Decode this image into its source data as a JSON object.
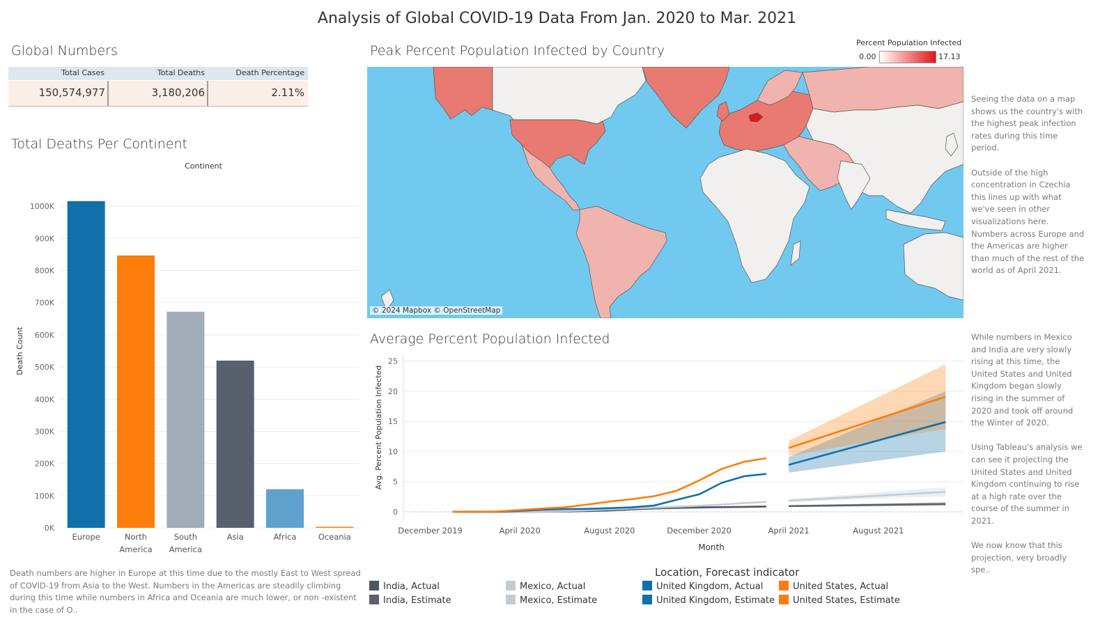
{
  "title": "Analysis of Global COVID-19 Data From Jan. 2020 to Mar. 2021",
  "global_numbers": {
    "title": "Global Numbers",
    "headers": [
      "Total Cases",
      "Total Deaths",
      "Death Percentage"
    ],
    "values": [
      "150,574,977",
      "3,180,206",
      "2.11%"
    ]
  },
  "deaths_per_continent": {
    "title": "Total Deaths Per Continent",
    "column_header": "Continent",
    "note": "Death numbers are higher in Europe at this time due to the mostly East to West spread of COVID-19 from Asia to the West. Numbers in the Americas are steadily climbing during this time while numbers in Africa and Oceania are much lower, or non -existent in the case of O.."
  },
  "map": {
    "title": "Peak Percent Population Infected by Country",
    "legend_title": "Percent Population Infected",
    "legend_min": "0.00",
    "legend_max": "17.13",
    "credit": "© 2024 Mapbox © OpenStreetMap",
    "colors": {
      "water": "#71c9ef",
      "land_low": "#f2f0ee",
      "land_mid": "#f1b3ad",
      "land_high": "#e87a72",
      "land_peak": "#e01717"
    },
    "note": "Seeing the data on a map shows us the country's with the highest peak infection rates during this time period.\n\nOutside of the high concentration in Czechia this lines up with what we've seen in other visualizations here. Numbers across Europe and the Americas are higher than much of the rest of the world as of April 2021."
  },
  "line_section": {
    "title": "Average Percent Population Infected",
    "note": "While numbers in Mexico and India are very slowly rising at this time, the United States and United Kingdom began slowly rising in the summer of 2020 and took off around the Winter of 2020.\n\nUsing Tableau's analysis we can see it projecting the United States and United Kingdom continuing to rise at a high rate over the course of the summer in 2021.\n\nWe now know that this projection, very broadly spe..",
    "legend_title": "Location, Forecast indicator",
    "legend": [
      {
        "label": "India, Actual",
        "color": "#4d5562"
      },
      {
        "label": "India, Estimate",
        "color": "#5b606b"
      },
      {
        "label": "Mexico, Actual",
        "color": "#c5cbd4"
      },
      {
        "label": "Mexico, Estimate",
        "color": "#c5cbd4"
      },
      {
        "label": "United Kingdom, Actual",
        "color": "#1170aa"
      },
      {
        "label": "United Kingdom, Estimate",
        "color": "#1170aa"
      },
      {
        "label": "United States, Actual",
        "color": "#fc7d0b"
      },
      {
        "label": "United States, Estimate",
        "color": "#fc7d0b"
      }
    ]
  },
  "chart_data": [
    {
      "type": "bar",
      "title": "Total Deaths Per Continent",
      "categories": [
        "Europe",
        "North America",
        "South America",
        "Asia",
        "Africa",
        "Oceania"
      ],
      "category_labels": [
        [
          "Europe"
        ],
        [
          "North",
          "America"
        ],
        [
          "South",
          "America"
        ],
        [
          "Asia"
        ],
        [
          "Africa"
        ],
        [
          "Oceania"
        ]
      ],
      "values": [
        1016000,
        847000,
        672000,
        520000,
        120000,
        1000
      ],
      "colors": [
        "#1170aa",
        "#fc7d0b",
        "#a3acb9",
        "#57606c",
        "#5fa2ce",
        "#fc7d0b"
      ],
      "xlabel": "Continent",
      "ylabel": "Death Count",
      "ylim": [
        0,
        1100000
      ],
      "yticks": [
        0,
        100000,
        200000,
        300000,
        400000,
        500000,
        600000,
        700000,
        800000,
        900000,
        1000000
      ],
      "ytick_labels": [
        "0K",
        "100K",
        "200K",
        "300K",
        "400K",
        "500K",
        "600K",
        "700K",
        "800K",
        "900K",
        "1000K"
      ],
      "grid": true
    },
    {
      "type": "line",
      "title": "Average Percent Population Infected",
      "xlabel": "Month",
      "ylabel": "Avg. Percent Population Infected",
      "x_tick_labels": [
        {
          "label": "December 2019",
          "month": 0
        },
        {
          "label": "April 2020",
          "month": 4
        },
        {
          "label": "August 2020",
          "month": 8
        },
        {
          "label": "December 2020",
          "month": 12
        },
        {
          "label": "April 2021",
          "month": 16
        },
        {
          "label": "August 2021",
          "month": 20
        }
      ],
      "x_month_range": [
        -1.2,
        23.8
      ],
      "ylim": [
        -1.5,
        26
      ],
      "yticks": [
        0,
        5,
        10,
        15,
        20,
        25
      ],
      "series": [
        {
          "name": "India, Actual",
          "color": "#4d5562",
          "x": [
            1,
            2,
            3,
            4,
            5,
            6,
            7,
            8,
            9,
            10,
            11,
            12,
            13,
            14,
            15
          ],
          "y": [
            0,
            0,
            0,
            0,
            0.02,
            0.05,
            0.12,
            0.22,
            0.4,
            0.55,
            0.65,
            0.72,
            0.78,
            0.82,
            0.88
          ]
        },
        {
          "name": "India, Estimate",
          "color": "#5b606b",
          "x": [
            16,
            23
          ],
          "y": [
            0.95,
            1.3
          ],
          "band_low": [
            0.8,
            1.0
          ],
          "band_high": [
            1.1,
            1.6
          ]
        },
        {
          "name": "Mexico, Actual",
          "color": "#c5cbd4",
          "x": [
            1,
            2,
            3,
            4,
            5,
            6,
            7,
            8,
            9,
            10,
            11,
            12,
            13,
            14,
            15
          ],
          "y": [
            0,
            0,
            0,
            0.02,
            0.05,
            0.12,
            0.25,
            0.4,
            0.55,
            0.7,
            0.85,
            1.0,
            1.2,
            1.45,
            1.65
          ]
        },
        {
          "name": "Mexico, Estimate",
          "color": "#c5cbd4",
          "x": [
            16,
            23
          ],
          "y": [
            1.85,
            3.3
          ],
          "band_low": [
            1.6,
            2.6
          ],
          "band_high": [
            2.1,
            4.1
          ]
        },
        {
          "name": "United Kingdom, Actual",
          "color": "#1170aa",
          "x": [
            1,
            2,
            3,
            4,
            5,
            6,
            7,
            8,
            9,
            10,
            11,
            12,
            13,
            14,
            15
          ],
          "y": [
            0,
            0,
            0.01,
            0.15,
            0.35,
            0.45,
            0.5,
            0.6,
            0.75,
            1.05,
            2.0,
            2.9,
            4.8,
            5.9,
            6.3
          ]
        },
        {
          "name": "United Kingdom, Estimate",
          "color": "#1170aa",
          "x": [
            16,
            23
          ],
          "y": [
            7.8,
            14.9
          ],
          "band_low": [
            6.5,
            10.0
          ],
          "band_high": [
            9.1,
            20.0
          ]
        },
        {
          "name": "United States, Actual",
          "color": "#fc7d0b",
          "x": [
            1,
            2,
            3,
            4,
            5,
            6,
            7,
            8,
            9,
            10,
            11,
            12,
            13,
            14,
            15
          ],
          "y": [
            0,
            0.01,
            0.05,
            0.3,
            0.55,
            0.75,
            1.2,
            1.7,
            2.1,
            2.6,
            3.5,
            5.2,
            7.1,
            8.3,
            8.9
          ]
        },
        {
          "name": "United States, Estimate",
          "color": "#fc7d0b",
          "x": [
            16,
            23
          ],
          "y": [
            10.6,
            19.1
          ],
          "band_low": [
            9.3,
            13.8
          ],
          "band_high": [
            11.8,
            24.5
          ]
        }
      ],
      "grid": true
    }
  ]
}
